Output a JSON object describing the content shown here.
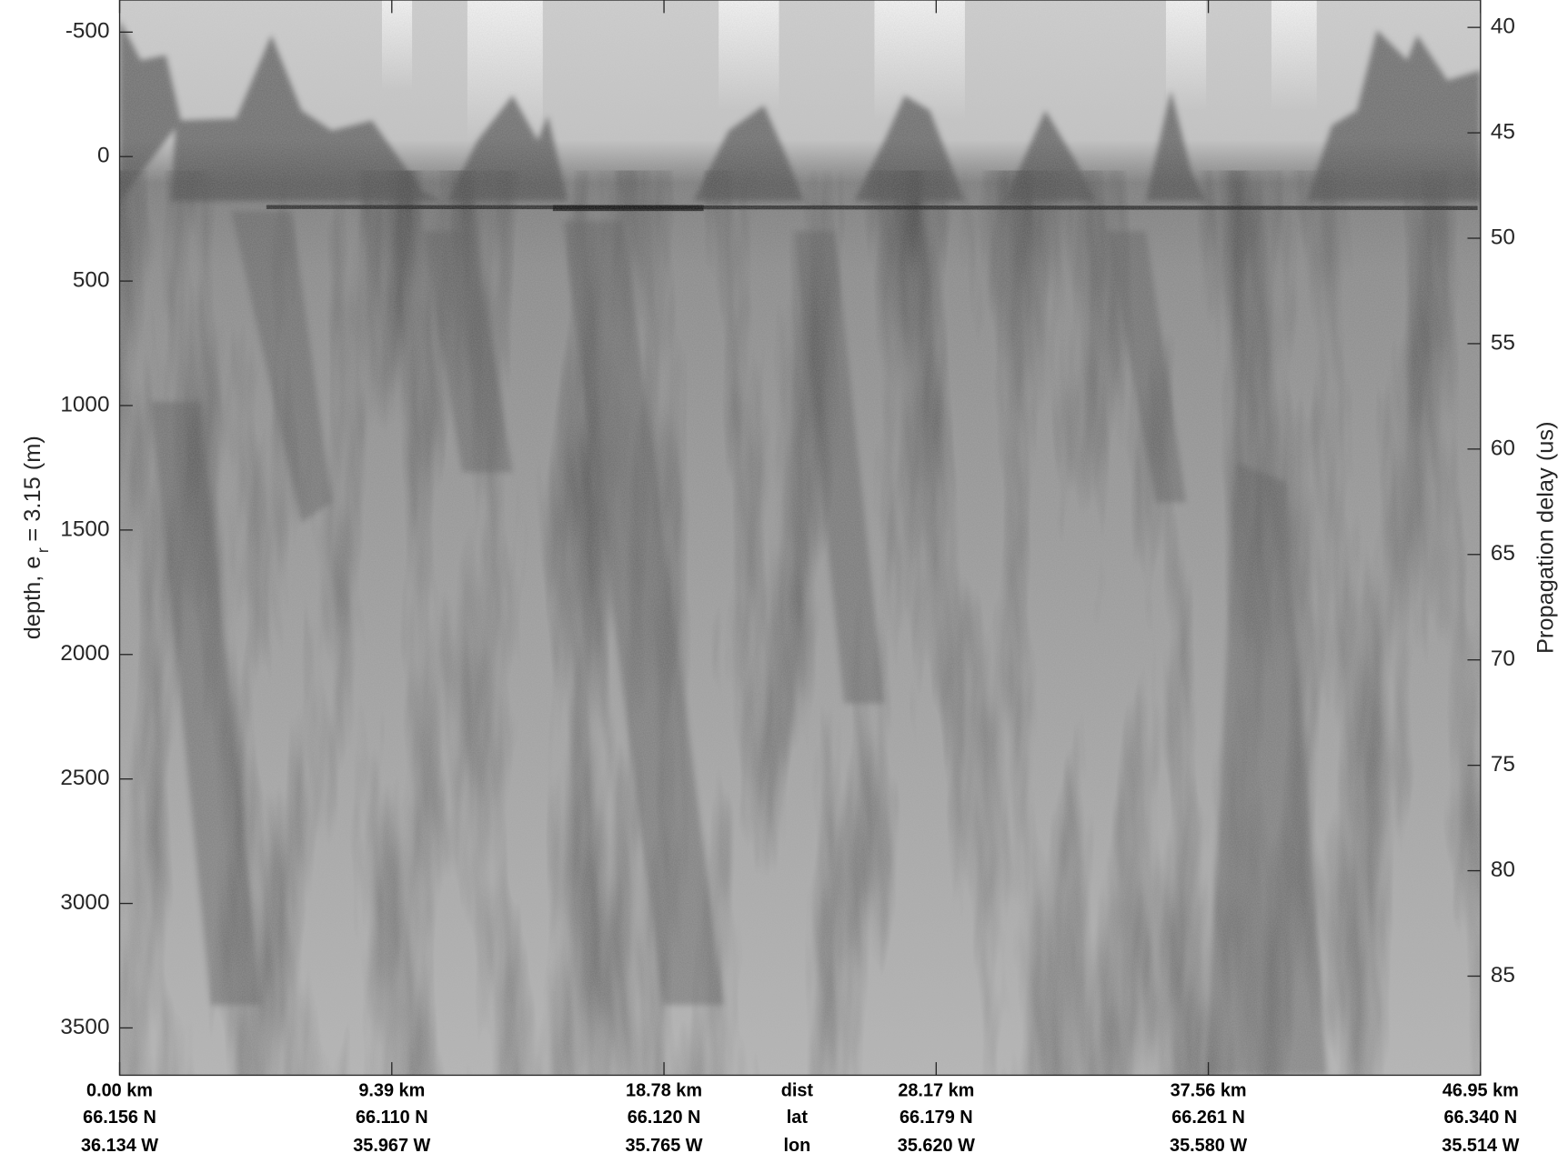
{
  "chart_data": {
    "type": "radargram",
    "ylabel_parts": [
      "depth, e",
      "r",
      "= 3.15 (m)"
    ],
    "y2label": "Propagation delay (us)",
    "ylim": [
      -629,
      3690
    ],
    "y_inverted": true,
    "yticks": [
      -500,
      0,
      500,
      1000,
      1500,
      2000,
      2500,
      3000,
      3500
    ],
    "y2lim": [
      38.7,
      89.7
    ],
    "y2ticks": [
      40,
      45,
      50,
      55,
      60,
      65,
      70,
      75,
      80,
      85
    ],
    "xlim": [
      0,
      46.95
    ],
    "xticks": [
      {
        "value": 0,
        "label": "0.00 km"
      },
      {
        "value": 9.39,
        "label": "9.39 km"
      },
      {
        "value": 18.78,
        "label": "18.78 km"
      },
      {
        "value": 28.17,
        "label": "28.17 km"
      },
      {
        "value": 37.56,
        "label": "37.56 km"
      },
      {
        "value": 46.95,
        "label": "46.95 km"
      }
    ],
    "row_labels": [
      "dist",
      "lat",
      "lon"
    ],
    "lat_labels": [
      "66.156 N",
      "66.110 N",
      "66.120 N",
      "66.179 N",
      "66.261 N",
      "66.340 N"
    ],
    "lon_labels": [
      "36.134 W",
      "35.967 W",
      "35.765 W",
      "35.620 W",
      "35.580 W",
      "35.514 W"
    ],
    "colormap": "gray"
  }
}
